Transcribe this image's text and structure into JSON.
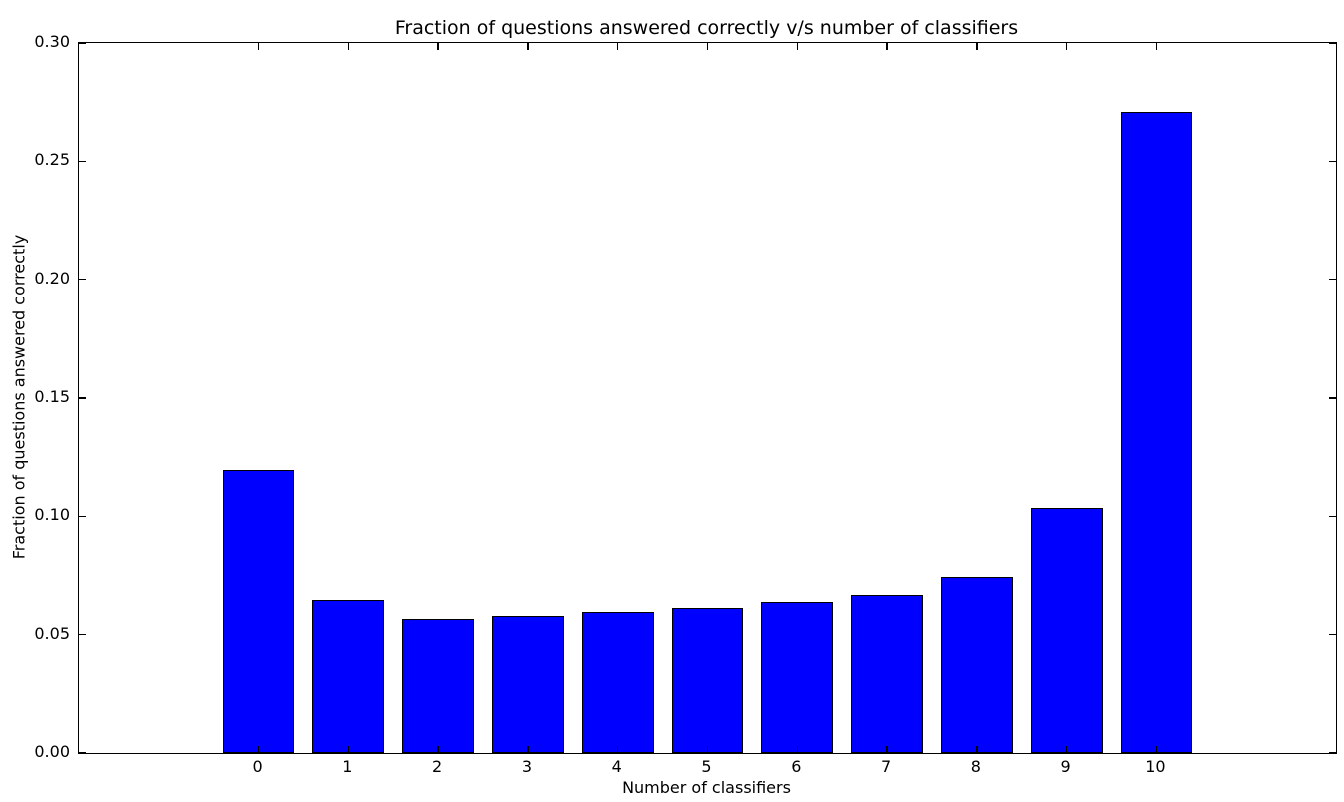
{
  "chart_data": {
    "type": "bar",
    "title": "Fraction of questions answered correctly v/s number of classifiers",
    "xlabel": "Number of classifiers",
    "ylabel": "Fraction of questions answered correctly",
    "categories": [
      "0",
      "1",
      "2",
      "3",
      "4",
      "5",
      "6",
      "7",
      "8",
      "9",
      "10"
    ],
    "values": [
      0.1195,
      0.0645,
      0.0565,
      0.058,
      0.0597,
      0.0611,
      0.0638,
      0.0668,
      0.0744,
      0.1037,
      0.271
    ],
    "ylim": [
      0,
      0.3
    ],
    "xlim": [
      -2,
      12
    ],
    "yticks": [
      0.0,
      0.05,
      0.1,
      0.15,
      0.2,
      0.25,
      0.3
    ],
    "ytick_labels": [
      "0.00",
      "0.05",
      "0.10",
      "0.15",
      "0.20",
      "0.25",
      "0.30"
    ],
    "bar_width_fraction": 0.8,
    "grid": false,
    "legend": null,
    "colors": {
      "bar_fill": "#0000ff",
      "bar_edge": "#000000",
      "text": "#000000",
      "background": "#ffffff"
    },
    "ticks_direction": "in",
    "ticks_on_all_spines": true
  }
}
